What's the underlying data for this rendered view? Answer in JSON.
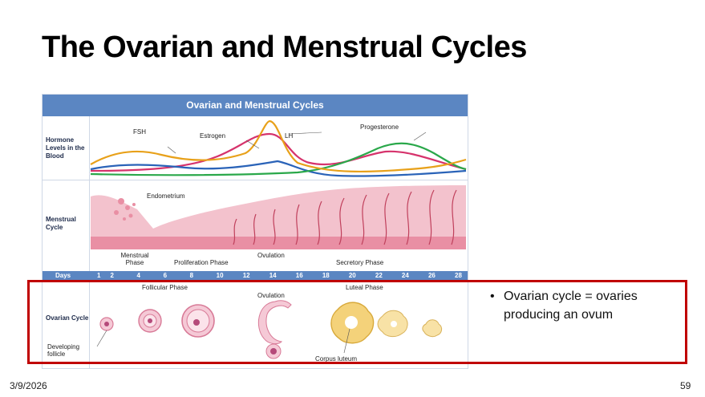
{
  "slide": {
    "title": "The Ovarian and Menstrual Cycles",
    "date": "3/9/2026",
    "page": "59",
    "bullet": "Ovarian cycle = ovaries producing an ovum"
  },
  "figure": {
    "title": "Ovarian and Menstrual Cycles",
    "rows": {
      "hormone": "Hormone Levels in the Blood",
      "menstrual": "Menstrual Cycle",
      "days": "Days",
      "ovarian": "Ovarian Cycle"
    },
    "hormones": {
      "fsh": "FSH",
      "estrogen": "Estrogen",
      "lh": "LH",
      "progesterone": "Progesterone"
    },
    "endometrium": "Endometrium",
    "phases": {
      "menstrual": "Menstrual Phase",
      "proliferation": "Proliferation Phase",
      "ovulation_top": "Ovulation",
      "secretory": "Secretory Phase",
      "follicular": "Follicular Phase",
      "ovulation_bottom": "Ovulation",
      "luteal": "Luteal Phase"
    },
    "days": [
      "1",
      "2",
      "4",
      "6",
      "8",
      "10",
      "12",
      "14",
      "16",
      "18",
      "20",
      "22",
      "24",
      "26",
      "28"
    ],
    "ovarian_labels": {
      "developing": "Developing follicle",
      "corpus": "Corpus luteum"
    },
    "colors": {
      "fsh": "#e8a11a",
      "lh": "#e8a11a",
      "estrogen": "#d6336c",
      "progesterone": "#2aa84a",
      "blue": "#2a63b8",
      "tissue": "#e98fa4"
    }
  }
}
